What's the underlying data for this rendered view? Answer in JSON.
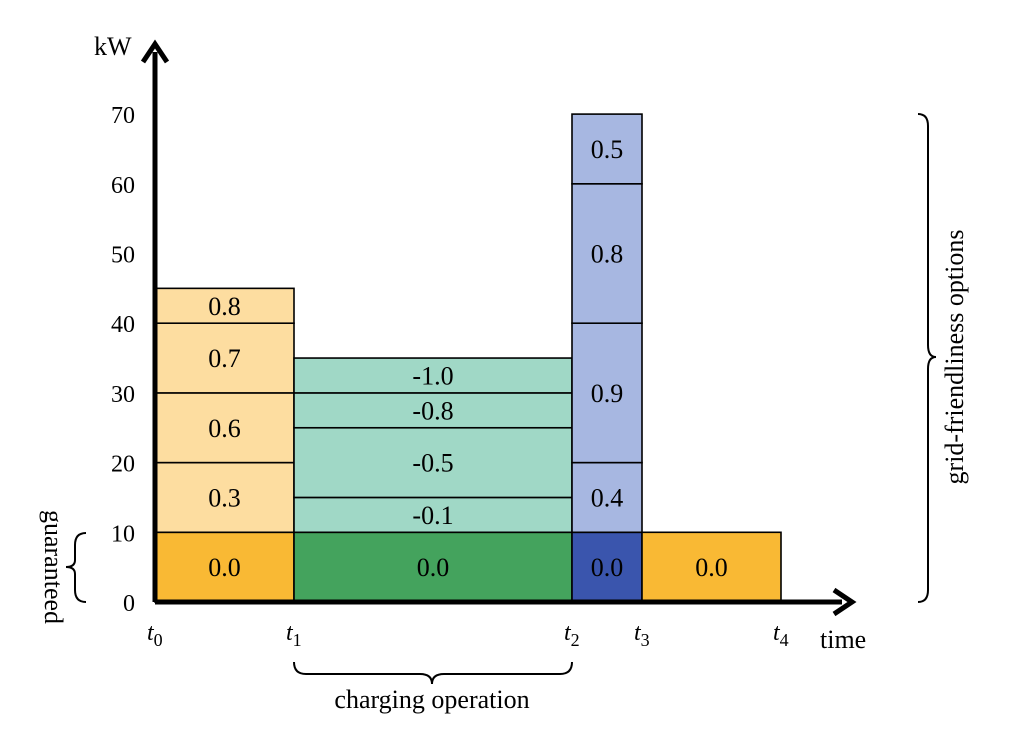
{
  "chart_data": {
    "type": "bar",
    "y_unit": "kW",
    "x_label": "time",
    "ylim": [
      0,
      70
    ],
    "y_ticks": [
      0,
      10,
      20,
      30,
      40,
      50,
      60,
      70
    ],
    "time_points": [
      {
        "base": "t",
        "sub": "0"
      },
      {
        "base": "t",
        "sub": "1"
      },
      {
        "base": "t",
        "sub": "2"
      },
      {
        "base": "t",
        "sub": "3"
      },
      {
        "base": "t",
        "sub": "4"
      }
    ],
    "blocks": [
      {
        "t_start": 0,
        "t_end": 1,
        "y0": 0,
        "y1": 10,
        "label": "0.0",
        "color": "#f9b934"
      },
      {
        "t_start": 0,
        "t_end": 1,
        "y0": 10,
        "y1": 20,
        "label": "0.3",
        "color": "#fddda0"
      },
      {
        "t_start": 0,
        "t_end": 1,
        "y0": 20,
        "y1": 30,
        "label": "0.6",
        "color": "#fddda0"
      },
      {
        "t_start": 0,
        "t_end": 1,
        "y0": 30,
        "y1": 40,
        "label": "0.7",
        "color": "#fddda0"
      },
      {
        "t_start": 0,
        "t_end": 1,
        "y0": 40,
        "y1": 45,
        "label": "0.8",
        "color": "#fddda0"
      },
      {
        "t_start": 1,
        "t_end": 2,
        "y0": 0,
        "y1": 10,
        "label": "0.0",
        "color": "#44a35d"
      },
      {
        "t_start": 1,
        "t_end": 2,
        "y0": 10,
        "y1": 15,
        "label": "-0.1",
        "color": "#a0d8c6"
      },
      {
        "t_start": 1,
        "t_end": 2,
        "y0": 15,
        "y1": 25,
        "label": "-0.5",
        "color": "#a0d8c6"
      },
      {
        "t_start": 1,
        "t_end": 2,
        "y0": 25,
        "y1": 30,
        "label": "-0.8",
        "color": "#a0d8c6"
      },
      {
        "t_start": 1,
        "t_end": 2,
        "y0": 30,
        "y1": 35,
        "label": "-1.0",
        "color": "#a0d8c6"
      },
      {
        "t_start": 2,
        "t_end": 3,
        "y0": 0,
        "y1": 10,
        "label": "0.0",
        "color": "#3a55ad"
      },
      {
        "t_start": 2,
        "t_end": 3,
        "y0": 10,
        "y1": 20,
        "label": "0.4",
        "color": "#a7b7e1"
      },
      {
        "t_start": 2,
        "t_end": 3,
        "y0": 20,
        "y1": 40,
        "label": "0.9",
        "color": "#a7b7e1"
      },
      {
        "t_start": 2,
        "t_end": 3,
        "y0": 40,
        "y1": 60,
        "label": "0.8",
        "color": "#a7b7e1"
      },
      {
        "t_start": 2,
        "t_end": 3,
        "y0": 60,
        "y1": 70,
        "label": "0.5",
        "color": "#a7b7e1"
      },
      {
        "t_start": 3,
        "t_end": 4,
        "y0": 0,
        "y1": 10,
        "label": "0.0",
        "color": "#f9b934"
      }
    ],
    "annotations": {
      "guaranteed": "guaranteed",
      "charging_operation": "charging operation",
      "grid_friendliness": "grid-friendliness options"
    }
  }
}
